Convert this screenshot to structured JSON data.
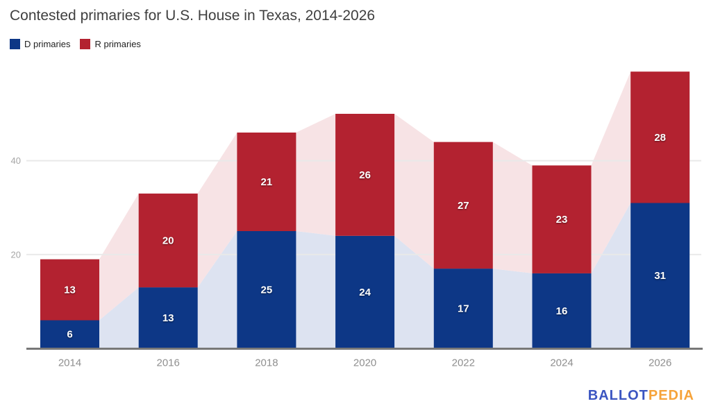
{
  "title": "Contested primaries for U.S. House in Texas, 2014-2026",
  "legend": [
    {
      "label": "D primaries"
    },
    {
      "label": "R primaries"
    }
  ],
  "chart_data": {
    "type": "bar",
    "stacked": true,
    "title": "Contested primaries for U.S. House in Texas, 2014-2026",
    "categories": [
      "2014",
      "2016",
      "2018",
      "2020",
      "2022",
      "2024",
      "2026"
    ],
    "series": [
      {
        "name": "D primaries",
        "color": "#0d3786",
        "area_color": "#dde3f1",
        "values": [
          6,
          13,
          25,
          24,
          17,
          16,
          31
        ]
      },
      {
        "name": "R primaries",
        "color": "#b32230",
        "area_color": "#f7e3e5",
        "values": [
          13,
          20,
          21,
          26,
          27,
          23,
          28
        ]
      }
    ],
    "totals": [
      19,
      33,
      46,
      50,
      44,
      39,
      59
    ],
    "yticks": [
      20,
      40
    ],
    "ylim": [
      0,
      60
    ],
    "grid": true,
    "legend_position": "top-left",
    "area_band_behind_bars": true,
    "value_labels_inside_segments": true
  },
  "footer": {
    "logo_part1": "BALLOT",
    "logo_part2": "PEDIA",
    "logo_color_ballot": "#3b55c1",
    "logo_color_pedia": "#f6a33a"
  }
}
